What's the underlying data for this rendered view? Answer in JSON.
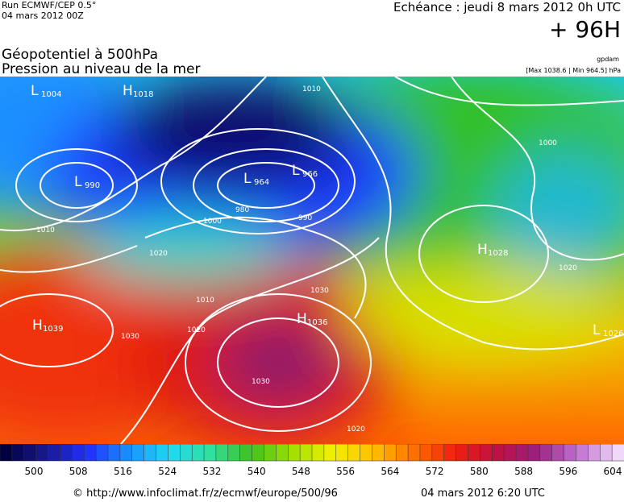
{
  "header": {
    "run": "Run ECMWF/CEP 0.5°",
    "run_date": "04 mars 2012 00Z",
    "valid": "Echéance : jeudi 8 mars 2012 0h UTC",
    "lead": "+ 96H",
    "field1": "Géopotentiel à 500hPa",
    "field2": "Pression au niveau de la mer",
    "unit": "gpdam",
    "extremes": "[Max 1038.6 | Min 964.5] hPa"
  },
  "map": {
    "centers": [
      {
        "kind": "L",
        "value": "1004"
      },
      {
        "kind": "H",
        "value": "1018"
      },
      {
        "kind": "L",
        "value": "990"
      },
      {
        "kind": "L",
        "value": "964"
      },
      {
        "kind": "L",
        "value": "966"
      },
      {
        "kind": "H",
        "value": "1039"
      },
      {
        "kind": "H",
        "value": "1036"
      },
      {
        "kind": "H",
        "value": "1028"
      },
      {
        "kind": "L",
        "value": "1026"
      }
    ],
    "isobar_labels": [
      "1010",
      "1020",
      "1030",
      "1020",
      "1010",
      "1000",
      "980",
      "990",
      "1030",
      "1020",
      "1010",
      "1030",
      "1000",
      "1020"
    ]
  },
  "scale": {
    "labels": [
      "500",
      "508",
      "516",
      "524",
      "532",
      "540",
      "548",
      "556",
      "564",
      "572",
      "580",
      "588",
      "596",
      "604"
    ]
  },
  "footer": {
    "url": "© http://www.infoclimat.fr/z/ecmwf/europe/500/96",
    "date": "04 mars 2012  6:20 UTC"
  }
}
